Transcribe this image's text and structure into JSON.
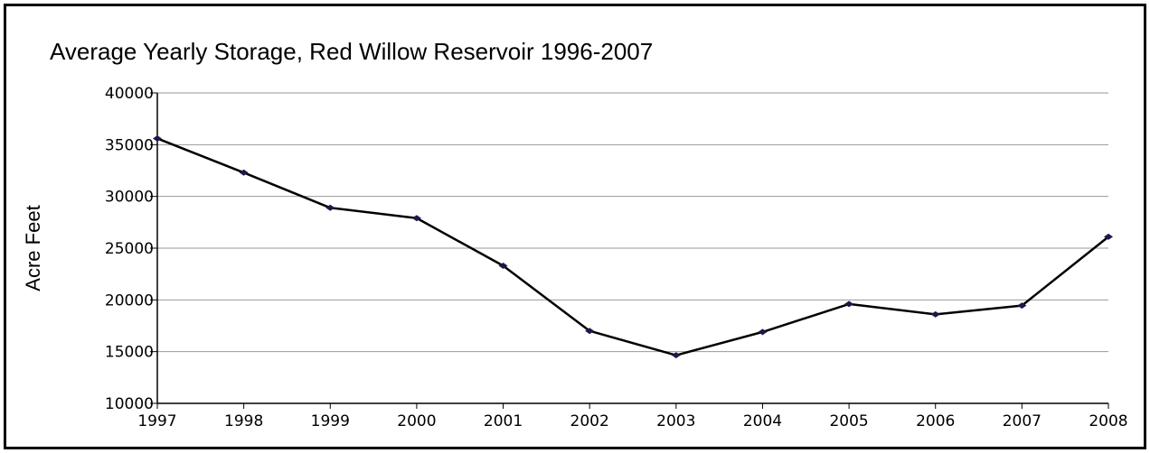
{
  "chart_data": {
    "type": "line",
    "title": "Average Yearly Storage, Red Willow Reservoir 1996-2007",
    "xlabel": "",
    "ylabel": "Acre Feet",
    "x": [
      "1997",
      "1998",
      "1999",
      "2000",
      "2001",
      "2002",
      "2003",
      "2004",
      "2005",
      "2006",
      "2007",
      "2008"
    ],
    "series": [
      {
        "values": [
          35600,
          32300,
          28900,
          27900,
          23300,
          17000,
          14650,
          16900,
          19600,
          18600,
          19450,
          26100
        ]
      }
    ],
    "ylim": [
      10000,
      40000
    ],
    "yticks": [
      "10000",
      "15000",
      "20000",
      "25000",
      "30000",
      "35000",
      "40000"
    ],
    "grid": "horizontal",
    "line_color": "#000000",
    "marker_color": "#1a1a4a"
  }
}
